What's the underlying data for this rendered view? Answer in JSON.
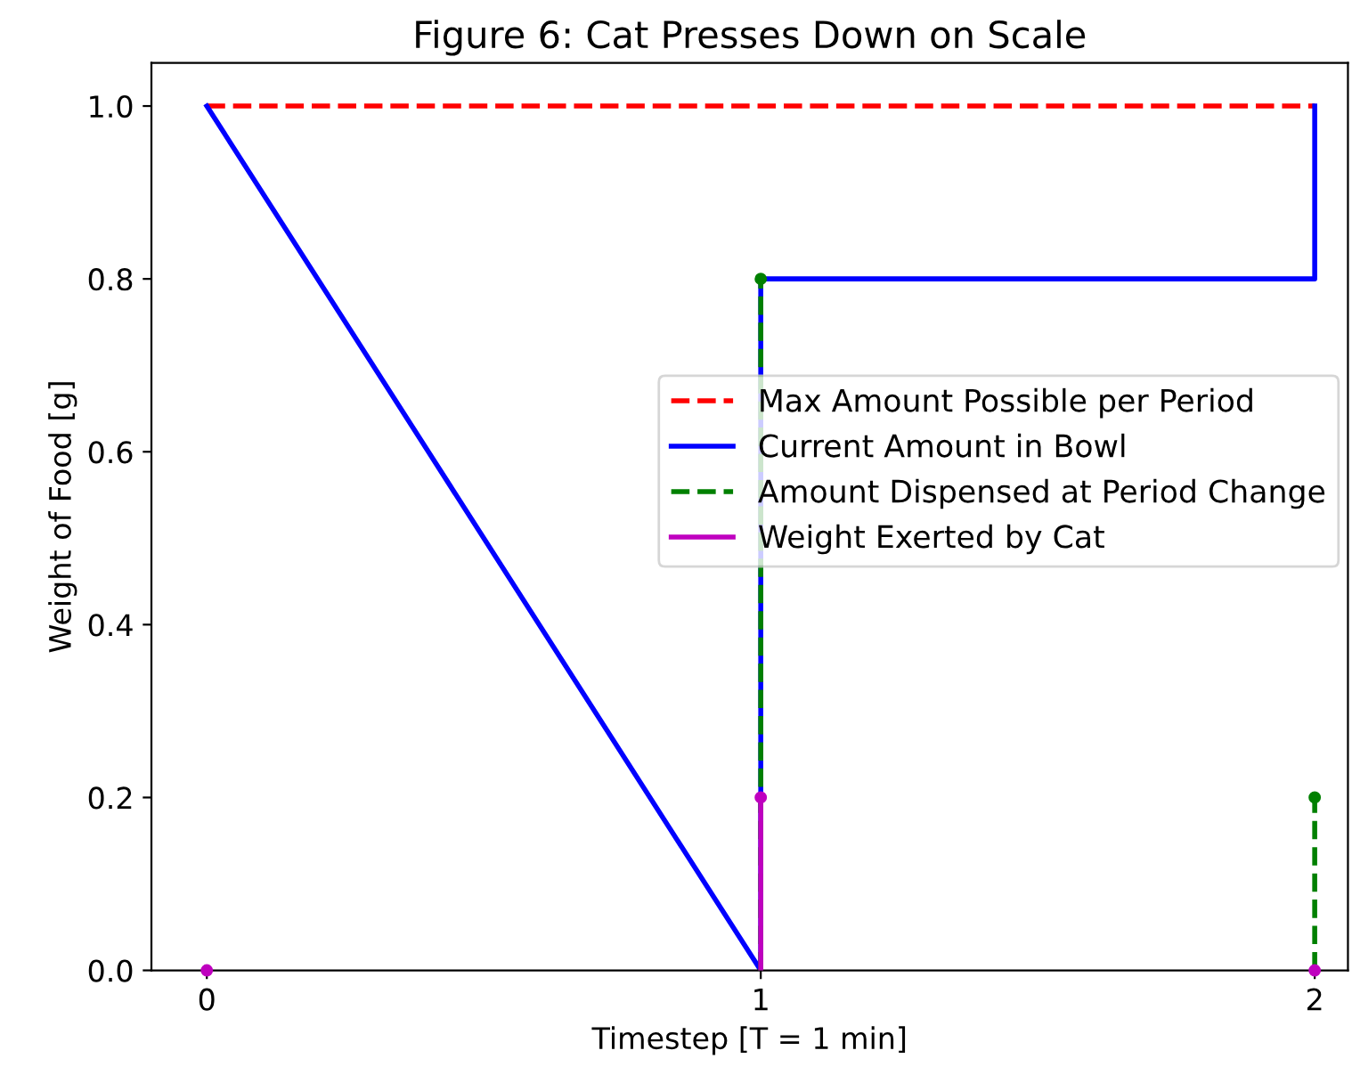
{
  "chart_data": {
    "type": "line",
    "title": "Figure 6: Cat Presses Down on Scale",
    "xlabel": "Timestep [T = 1 min]",
    "ylabel": "Weight of Food [g]",
    "xlim": [
      -0.1,
      2.06
    ],
    "xticks": [
      0,
      1,
      2
    ],
    "ylim": [
      0,
      1.05
    ],
    "yticks": [
      {
        "value": 0,
        "label": "0.0"
      },
      0.2,
      0.4,
      0.6,
      0.8,
      {
        "value": 1,
        "label": "1.0"
      }
    ],
    "grid": false,
    "legend": "right",
    "series": [
      {
        "name": "Max Amount Possible per Period",
        "color": "#ff0000",
        "line_style": "dashed",
        "marker": "none",
        "x": [
          0,
          2
        ],
        "values": [
          1.0,
          1.0
        ]
      },
      {
        "name": "Current Amount in Bowl",
        "color": "#0000ff",
        "line_style": "solid",
        "marker": "none",
        "x": [
          0,
          1,
          1,
          2,
          2
        ],
        "values": [
          1.0,
          0.0,
          0.8,
          0.8,
          1.0
        ]
      },
      {
        "name": "Amount Dispensed at Period Change",
        "type": "lollipop",
        "color": "#008000",
        "line_style": "dashed",
        "marker": "circle",
        "x": [
          1,
          2
        ],
        "values": [
          0.8,
          0.2
        ]
      },
      {
        "name": "Weight Exerted by Cat",
        "type": "lollipop",
        "color": "#bf00bf",
        "line_style": "solid",
        "marker": "circle",
        "x": [
          0,
          1,
          2
        ],
        "values": [
          0.0,
          0.2,
          0.0
        ]
      }
    ]
  }
}
